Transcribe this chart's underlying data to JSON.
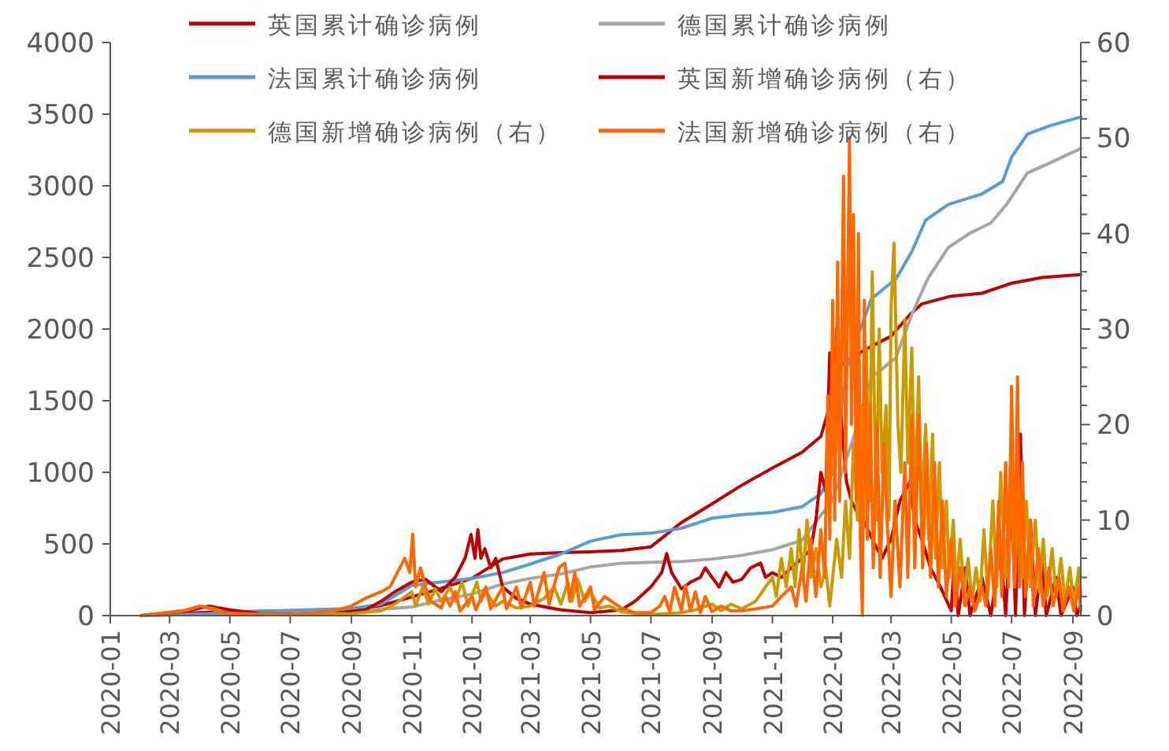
{
  "chart_data": {
    "type": "line",
    "legend": "top",
    "xlim": [
      "2020-01-01",
      "2022-09-09"
    ],
    "xticks": [
      "2020-01",
      "2020-03",
      "2020-05",
      "2020-07",
      "2020-09",
      "2020-11",
      "2021-01",
      "2021-03",
      "2021-05",
      "2021-07",
      "2021-09",
      "2021-11",
      "2022-01",
      "2022-03",
      "2022-05",
      "2022-07",
      "2022-09"
    ],
    "ylim": [
      0,
      4000
    ],
    "yticks": [
      0,
      500,
      1000,
      1500,
      2000,
      2500,
      3000,
      3500,
      4000
    ],
    "y2lim": [
      0,
      60
    ],
    "y2ticks": [
      0,
      {
        "value": 2,
        "label": null
      },
      {
        "value": 4,
        "label": null
      },
      {
        "value": 6,
        "label": null
      },
      {
        "value": 8,
        "label": null
      },
      10,
      {
        "value": 12,
        "label": null
      },
      {
        "value": 14,
        "label": null
      },
      {
        "value": 16,
        "label": null
      },
      {
        "value": 18,
        "label": null
      },
      20,
      {
        "value": 22,
        "label": null
      },
      {
        "value": 24,
        "label": null
      },
      {
        "value": 26,
        "label": null
      },
      {
        "value": 28,
        "label": null
      },
      30,
      {
        "value": 32,
        "label": null
      },
      {
        "value": 34,
        "label": null
      },
      {
        "value": 36,
        "label": null
      },
      {
        "value": 38,
        "label": null
      },
      40,
      {
        "value": 42,
        "label": null
      },
      {
        "value": 44,
        "label": null
      },
      {
        "value": 46,
        "label": null
      },
      {
        "value": 48,
        "label": null
      },
      50,
      {
        "value": 52,
        "label": null
      },
      {
        "value": 54,
        "label": null
      },
      {
        "value": 56,
        "label": null
      },
      {
        "value": 58,
        "label": null
      },
      60
    ],
    "series": [
      {
        "name": "英国累计确诊病例",
        "color": "#c00000",
        "x": [
          "2020-02-01",
          "2020-04-01",
          "2020-06-01",
          "2020-09-01",
          "2020-10-01",
          "2020-11-01",
          "2020-12-01",
          "2021-01-01",
          "2021-02-01",
          "2021-03-01",
          "2021-04-01",
          "2021-05-01",
          "2021-06-01",
          "2021-07-01",
          "2021-08-01",
          "2021-09-01",
          "2021-10-01",
          "2021-11-01",
          "2021-12-01",
          "2021-12-20",
          "2022-01-10",
          "2022-02-01",
          "2022-03-01",
          "2022-03-20",
          "2022-04-01",
          "2022-05-01",
          "2022-06-01",
          "2022-07-01",
          "2022-08-01",
          "2022-09-09"
        ],
        "values": [
          0,
          20,
          30,
          40,
          70,
          130,
          190,
          260,
          395,
          430,
          440,
          445,
          455,
          480,
          650,
          780,
          910,
          1030,
          1140,
          1250,
          1750,
          1850,
          1950,
          2100,
          2175,
          2230,
          2250,
          2320,
          2360,
          2380
        ]
      },
      {
        "name": "德国累计确诊病例",
        "color": "#a5a5a5",
        "x": [
          "2020-02-01",
          "2020-04-01",
          "2020-06-01",
          "2020-09-01",
          "2020-11-01",
          "2020-12-01",
          "2021-01-01",
          "2021-02-01",
          "2021-03-01",
          "2021-04-01",
          "2021-05-01",
          "2021-06-01",
          "2021-07-01",
          "2021-08-01",
          "2021-09-01",
          "2021-10-01",
          "2021-11-01",
          "2021-12-01",
          "2022-01-01",
          "2022-01-20",
          "2022-02-09",
          "2022-03-06",
          "2022-03-22",
          "2022-04-07",
          "2022-04-28",
          "2022-05-20",
          "2022-06-10",
          "2022-06-26",
          "2022-07-17",
          "2022-08-09",
          "2022-09-09"
        ],
        "values": [
          0,
          10,
          20,
          30,
          60,
          110,
          150,
          220,
          260,
          290,
          340,
          365,
          372,
          378,
          395,
          420,
          460,
          525,
          810,
          1200,
          1660,
          1800,
          2100,
          2350,
          2570,
          2670,
          2740,
          2870,
          3090,
          3160,
          3260
        ]
      },
      {
        "name": "法国累计确诊病例",
        "color": "#5b9bd5",
        "x": [
          "2020-02-01",
          "2020-04-01",
          "2020-06-01",
          "2020-09-01",
          "2020-10-01",
          "2020-11-01",
          "2021-01-01",
          "2021-02-01",
          "2021-03-01",
          "2021-04-01",
          "2021-05-01",
          "2021-06-01",
          "2021-07-01",
          "2021-08-01",
          "2021-09-01",
          "2021-10-01",
          "2021-11-01",
          "2021-12-01",
          "2021-12-20",
          "2022-01-01",
          "2022-01-15",
          "2022-02-09",
          "2022-03-06",
          "2022-03-22",
          "2022-04-05",
          "2022-04-28",
          "2022-05-31",
          "2022-06-22",
          "2022-07-01",
          "2022-07-17",
          "2022-08-09",
          "2022-09-09"
        ],
        "values": [
          0,
          10,
          30,
          50,
          80,
          210,
          260,
          300,
          360,
          430,
          520,
          565,
          575,
          610,
          680,
          705,
          720,
          760,
          850,
          1000,
          1730,
          2210,
          2350,
          2540,
          2760,
          2870,
          2940,
          3030,
          3200,
          3360,
          3420,
          3480
        ]
      },
      {
        "name": "英国新增确诊病例（右）",
        "color": "#c00000",
        "axis": "y2",
        "x": [
          "2020-02-01",
          "2020-03-20",
          "2020-04-10",
          "2020-05-01",
          "2020-06-01",
          "2020-08-01",
          "2020-09-15",
          "2020-10-01",
          "2020-10-15",
          "2020-11-01",
          "2020-11-15",
          "2020-12-01",
          "2020-12-15",
          "2020-12-25",
          "2020-12-31",
          "2021-01-04",
          "2021-01-07",
          "2021-01-10",
          "2021-01-14",
          "2021-01-20",
          "2021-01-25",
          "2021-02-01",
          "2021-02-15",
          "2021-03-01",
          "2021-04-01",
          "2021-05-01",
          "2021-06-01",
          "2021-06-15",
          "2021-07-01",
          "2021-07-12",
          "2021-07-17",
          "2021-07-22",
          "2021-08-01",
          "2021-08-10",
          "2021-08-20",
          "2021-08-25",
          "2021-09-01",
          "2021-09-08",
          "2021-09-15",
          "2021-09-22",
          "2021-10-01",
          "2021-10-10",
          "2021-10-20",
          "2021-10-25",
          "2021-11-01",
          "2021-11-10",
          "2021-11-20",
          "2021-12-01",
          "2021-12-10",
          "2021-12-15",
          "2021-12-20",
          "2021-12-25",
          "2021-12-29",
          "2022-01-02",
          "2022-01-05",
          "2022-01-10",
          "2022-01-15",
          "2022-01-20",
          "2022-01-25",
          "2022-02-01",
          "2022-02-10",
          "2022-02-20",
          "2022-03-01",
          "2022-03-10",
          "2022-03-20",
          "2022-03-25",
          "2022-04-01",
          "2022-04-10",
          "2022-04-20",
          "2022-05-01",
          "2022-05-04",
          "2022-05-08",
          "2022-05-15",
          "2022-05-20",
          "2022-06-01",
          "2022-06-10",
          "2022-06-20",
          "2022-06-25",
          "2022-07-01",
          "2022-07-05",
          "2022-07-10",
          "2022-07-14",
          "2022-07-20",
          "2022-07-25",
          "2022-08-01",
          "2022-08-05",
          "2022-08-15",
          "2022-08-20",
          "2022-09-01",
          "2022-09-05",
          "2022-09-09"
        ],
        "values": [
          0,
          0.5,
          1,
          0.6,
          0.2,
          0.1,
          0.6,
          1.5,
          2.5,
          3.5,
          3.8,
          2.5,
          4,
          6,
          8.5,
          6,
          9,
          6,
          7,
          5,
          6,
          3,
          1.8,
          1.2,
          0.6,
          0.3,
          0.6,
          1.5,
          3,
          4.5,
          6.5,
          4.5,
          2.8,
          3.5,
          4,
          5,
          4,
          3,
          4.5,
          3.5,
          3.8,
          5,
          5.5,
          4,
          4.5,
          4,
          5,
          6,
          7,
          10,
          15,
          13,
          27.5,
          22,
          30,
          20,
          14,
          12,
          11,
          10,
          8,
          6,
          8,
          12,
          14,
          10,
          8,
          5,
          3,
          0.5,
          6,
          0,
          5,
          0,
          4,
          0,
          7,
          0,
          12,
          0,
          19,
          0,
          10,
          0,
          6,
          0,
          4,
          0,
          3,
          0,
          1
        ]
      },
      {
        "name": "德国新增确诊病例（右）",
        "color": "#cc9900",
        "axis": "y2",
        "x": [
          "2020-02-01",
          "2020-03-20",
          "2020-04-01",
          "2020-04-15",
          "2020-05-01",
          "2020-07-01",
          "2020-09-01",
          "2020-10-01",
          "2020-10-15",
          "2020-11-01",
          "2020-11-05",
          "2020-11-12",
          "2020-11-18",
          "2020-11-25",
          "2020-12-01",
          "2020-12-10",
          "2020-12-15",
          "2020-12-22",
          "2020-12-28",
          "2021-01-06",
          "2021-01-10",
          "2021-01-15",
          "2021-01-25",
          "2021-02-01",
          "2021-02-15",
          "2021-03-01",
          "2021-03-15",
          "2021-03-25",
          "2021-04-01",
          "2021-04-08",
          "2021-04-12",
          "2021-04-18",
          "2021-04-25",
          "2021-05-01",
          "2021-05-10",
          "2021-05-20",
          "2021-06-01",
          "2021-07-01",
          "2021-08-01",
          "2021-08-15",
          "2021-09-01",
          "2021-09-10",
          "2021-09-20",
          "2021-10-01",
          "2021-10-15",
          "2021-10-25",
          "2021-11-01",
          "2021-11-05",
          "2021-11-10",
          "2021-11-15",
          "2021-11-20",
          "2021-11-24",
          "2021-11-28",
          "2021-12-02",
          "2021-12-06",
          "2021-12-10",
          "2021-12-15",
          "2021-12-20",
          "2021-12-25",
          "2021-12-29",
          "2022-01-05",
          "2022-01-10",
          "2022-01-14",
          "2022-01-18",
          "2022-01-22",
          "2022-01-26",
          "2022-01-29",
          "2022-02-01",
          "2022-02-04",
          "2022-02-07",
          "2022-02-10",
          "2022-02-14",
          "2022-02-17",
          "2022-02-20",
          "2022-02-24",
          "2022-02-27",
          "2022-03-01",
          "2022-03-04",
          "2022-03-08",
          "2022-03-11",
          "2022-03-15",
          "2022-03-18",
          "2022-03-22",
          "2022-03-25",
          "2022-03-29",
          "2022-04-01",
          "2022-04-05",
          "2022-04-08",
          "2022-04-12",
          "2022-04-15",
          "2022-04-19",
          "2022-04-22",
          "2022-04-26",
          "2022-04-29",
          "2022-05-03",
          "2022-05-06",
          "2022-05-10",
          "2022-05-14",
          "2022-05-18",
          "2022-05-22",
          "2022-05-26",
          "2022-05-30",
          "2022-06-03",
          "2022-06-07",
          "2022-06-12",
          "2022-06-16",
          "2022-06-20",
          "2022-06-25",
          "2022-06-30",
          "2022-07-04",
          "2022-07-08",
          "2022-07-12",
          "2022-07-16",
          "2022-07-20",
          "2022-07-25",
          "2022-07-29",
          "2022-08-02",
          "2022-08-06",
          "2022-08-11",
          "2022-08-15",
          "2022-08-20",
          "2022-08-24",
          "2022-08-29",
          "2022-09-02",
          "2022-09-07",
          "2022-09-09"
        ],
        "values": [
          0,
          0.6,
          1,
          0.7,
          0.2,
          0.1,
          0.2,
          0.5,
          1.2,
          2.5,
          1,
          3,
          1.2,
          2.8,
          1.5,
          3,
          1.5,
          3.5,
          1,
          3.5,
          1.5,
          2.5,
          1,
          1.5,
          0.8,
          1,
          1.8,
          3,
          1.2,
          3.5,
          1.5,
          3.8,
          1.5,
          2.5,
          0.8,
          1,
          0.4,
          0.1,
          0.3,
          0.6,
          1.2,
          0.5,
          1.2,
          0.7,
          1.5,
          3,
          4,
          2,
          6,
          3,
          7,
          3,
          9,
          4,
          10,
          4,
          7,
          3,
          5,
          1,
          8,
          4,
          12,
          6,
          18,
          10,
          22,
          9,
          28,
          12,
          36,
          10,
          30,
          15,
          22,
          10,
          32,
          39,
          20,
          15,
          31,
          16,
          28,
          12,
          25,
          10,
          20,
          8,
          19,
          6,
          16,
          5,
          12,
          4,
          10,
          3,
          8,
          2,
          6,
          1.5,
          5,
          1.5,
          9,
          2,
          12,
          3,
          15,
          4,
          16,
          3,
          14,
          4,
          12,
          3,
          10,
          2.5,
          8,
          2,
          7,
          2,
          6,
          1.5,
          5,
          1,
          5,
          2
        ]
      },
      {
        "name": "法国新增确诊病例（右）",
        "color": "#ff6600",
        "axis": "y2",
        "x": [
          "2020-02-01",
          "2020-03-15",
          "2020-04-01",
          "2020-04-15",
          "2020-05-01",
          "2020-07-01",
          "2020-08-15",
          "2020-09-01",
          "2020-09-15",
          "2020-10-01",
          "2020-10-10",
          "2020-10-20",
          "2020-10-25",
          "2020-10-30",
          "2020-11-02",
          "2020-11-05",
          "2020-11-10",
          "2020-11-15",
          "2020-11-20",
          "2020-12-01",
          "2020-12-05",
          "2020-12-10",
          "2020-12-15",
          "2020-12-20",
          "2021-01-01",
          "2021-01-05",
          "2021-01-15",
          "2021-01-20",
          "2021-02-01",
          "2021-02-05",
          "2021-02-15",
          "2021-02-20",
          "2021-03-01",
          "2021-03-05",
          "2021-03-15",
          "2021-03-20",
          "2021-03-30",
          "2021-04-05",
          "2021-04-10",
          "2021-04-15",
          "2021-04-20",
          "2021-05-01",
          "2021-05-05",
          "2021-05-15",
          "2021-06-01",
          "2021-06-15",
          "2021-07-01",
          "2021-07-10",
          "2021-07-15",
          "2021-07-20",
          "2021-07-25",
          "2021-08-01",
          "2021-08-05",
          "2021-08-10",
          "2021-08-15",
          "2021-08-20",
          "2021-08-25",
          "2021-09-01",
          "2021-09-10",
          "2021-09-20",
          "2021-10-01",
          "2021-10-15",
          "2021-11-01",
          "2021-11-10",
          "2021-11-20",
          "2021-11-25",
          "2021-12-01",
          "2021-12-05",
          "2021-12-10",
          "2021-12-15",
          "2021-12-20",
          "2021-12-24",
          "2021-12-27",
          "2021-12-29",
          "2022-01-01",
          "2022-01-03",
          "2022-01-06",
          "2022-01-08",
          "2022-01-12",
          "2022-01-14",
          "2022-01-18",
          "2022-01-20",
          "2022-01-22",
          "2022-01-25",
          "2022-01-27",
          "2022-01-29",
          "2022-01-31",
          "2022-02-02",
          "2022-02-05",
          "2022-02-08",
          "2022-02-11",
          "2022-02-15",
          "2022-02-18",
          "2022-02-22",
          "2022-02-25",
          "2022-03-01",
          "2022-03-05",
          "2022-03-10",
          "2022-03-15",
          "2022-03-18",
          "2022-03-22",
          "2022-03-25",
          "2022-03-29",
          "2022-04-02",
          "2022-04-06",
          "2022-04-10",
          "2022-04-14",
          "2022-04-18",
          "2022-04-22",
          "2022-04-26",
          "2022-05-01",
          "2022-05-05",
          "2022-05-10",
          "2022-05-15",
          "2022-05-20",
          "2022-05-25",
          "2022-06-01",
          "2022-06-05",
          "2022-06-10",
          "2022-06-14",
          "2022-06-18",
          "2022-06-21",
          "2022-06-25",
          "2022-06-28",
          "2022-07-01",
          "2022-07-04",
          "2022-07-07",
          "2022-07-09",
          "2022-07-12",
          "2022-07-15",
          "2022-07-20",
          "2022-07-23",
          "2022-07-28",
          "2022-08-02",
          "2022-08-08",
          "2022-08-12",
          "2022-08-18",
          "2022-08-22",
          "2022-08-28",
          "2022-09-02",
          "2022-09-07",
          "2022-09-09"
        ],
        "values": [
          0,
          0.5,
          1,
          0.6,
          0.2,
          0.1,
          0.5,
          1,
          1.8,
          2.5,
          3,
          5,
          6,
          4.5,
          8.5,
          3,
          5,
          3,
          1.5,
          0.8,
          2,
          1,
          2.5,
          0.5,
          2,
          0.6,
          3,
          0.7,
          3,
          0.7,
          3,
          0.8,
          3.5,
          1,
          4.5,
          1.2,
          5,
          5.5,
          1.5,
          4.5,
          1,
          3,
          0.6,
          2,
          0.8,
          0.3,
          0.3,
          1,
          2,
          0.4,
          3,
          0.5,
          3.2,
          0.5,
          2.5,
          0.3,
          2,
          0.4,
          1,
          0.5,
          0.5,
          0.7,
          1,
          2,
          3,
          1,
          5,
          1.5,
          8,
          2,
          9,
          4,
          23,
          8,
          33,
          10,
          37,
          12,
          46,
          15,
          50,
          20,
          42,
          12,
          40,
          8,
          0,
          33,
          8,
          22,
          5,
          20,
          4,
          18,
          10,
          2,
          12,
          3,
          16,
          4,
          21,
          5,
          21,
          5,
          18,
          4,
          16,
          3,
          12,
          2,
          8,
          1,
          5,
          1,
          3,
          0.5,
          3,
          1,
          7,
          1,
          12,
          2,
          16,
          3,
          24,
          3,
          25,
          3,
          16,
          2,
          10,
          1,
          7,
          1,
          5,
          1,
          4,
          0.5,
          3,
          0.5,
          3,
          0.5
        ]
      }
    ]
  }
}
